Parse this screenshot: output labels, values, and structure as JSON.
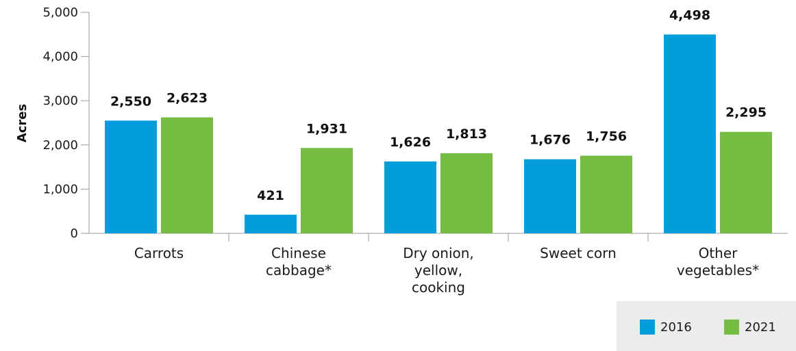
{
  "chart_data": {
    "type": "bar",
    "ylabel": "Acres",
    "ylim": [
      0,
      5000
    ],
    "yticks": [
      "0",
      "1,000",
      "2,000",
      "3,000",
      "4,000",
      "5,000"
    ],
    "categories": [
      [
        "Carrots"
      ],
      [
        "Chinese",
        "cabbage*"
      ],
      [
        "Dry onion,",
        "yellow,",
        "cooking"
      ],
      [
        "Sweet corn"
      ],
      [
        "Other",
        "vegetables*"
      ]
    ],
    "series": [
      {
        "name": "2016",
        "color": "#009ddc",
        "values": [
          2550,
          421,
          1626,
          1676,
          4498
        ],
        "labels": [
          "2,550",
          "421",
          "1,626",
          "1,676",
          "4,498"
        ]
      },
      {
        "name": "2021",
        "color": "#76bc43",
        "values": [
          2623,
          1931,
          1813,
          1756,
          2295
        ],
        "labels": [
          "2,623",
          "1,931",
          "1,813",
          "1,756",
          "2,295"
        ]
      }
    ],
    "legend_position": "bottom-right",
    "grid": false
  }
}
